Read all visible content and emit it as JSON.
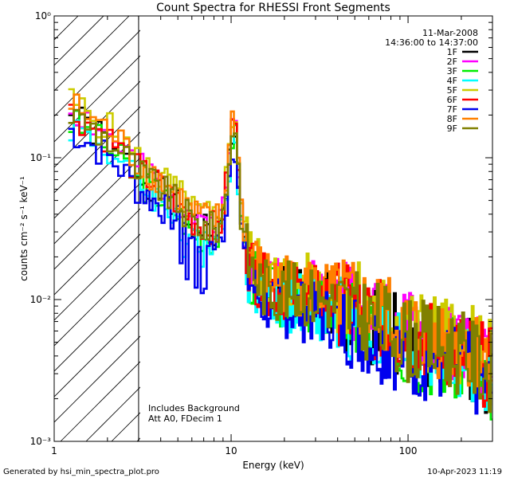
{
  "chart_data": {
    "type": "line",
    "title": "Count Spectra for RHESSI Front Segments",
    "xlabel": "Energy (keV)",
    "ylabel": "counts cm⁻² s⁻¹ keV⁻¹",
    "xscale": "log",
    "yscale": "log",
    "xlim": [
      1,
      300
    ],
    "ylim": [
      0.001,
      1
    ],
    "xticks": [
      {
        "value": 1,
        "label": "1"
      },
      {
        "value": 10,
        "label": "10"
      },
      {
        "value": 100,
        "label": "100"
      }
    ],
    "yticks": [
      {
        "value": 0.001,
        "label": "10⁻³"
      },
      {
        "value": 0.01,
        "label": "10⁻²"
      },
      {
        "value": 0.1,
        "label": "10⁻¹"
      },
      {
        "value": 1,
        "label": "10⁰"
      }
    ],
    "hatched_region": [
      1,
      3
    ],
    "legend_header": [
      "11-Mar-2008",
      "14:36:00 to 14:37:00"
    ],
    "annotations": [
      "Includes Background",
      "Att A0, FDecim 1"
    ],
    "series": [
      {
        "name": "1F",
        "color": "#000000",
        "seed": 1,
        "offset": 0.0
      },
      {
        "name": "2F",
        "color": "#ff00ff",
        "seed": 2,
        "offset": 0.05
      },
      {
        "name": "3F",
        "color": "#00ee00",
        "seed": 3,
        "offset": -0.04
      },
      {
        "name": "4F",
        "color": "#00ffff",
        "seed": 4,
        "offset": -0.06
      },
      {
        "name": "5F",
        "color": "#cccc00",
        "seed": 5,
        "offset": 0.1
      },
      {
        "name": "6F",
        "color": "#ff0000",
        "seed": 6,
        "offset": 0.03
      },
      {
        "name": "7F",
        "color": "#0000ee",
        "seed": 7,
        "offset": -0.1
      },
      {
        "name": "8F",
        "color": "#ff8000",
        "seed": 8,
        "offset": 0.08
      },
      {
        "name": "9F",
        "color": "#808000",
        "seed": 9,
        "offset": 0.02
      }
    ],
    "baseline": [
      [
        1.2,
        0.2
      ],
      [
        1.5,
        0.17
      ],
      [
        2,
        0.13
      ],
      [
        2.5,
        0.1
      ],
      [
        3,
        0.075
      ],
      [
        4,
        0.058
      ],
      [
        5,
        0.045
      ],
      [
        6,
        0.034
      ],
      [
        7,
        0.031
      ],
      [
        8,
        0.03
      ],
      [
        8.8,
        0.032
      ],
      [
        9.3,
        0.05
      ],
      [
        9.8,
        0.1
      ],
      [
        10.2,
        0.16
      ],
      [
        10.6,
        0.15
      ],
      [
        11,
        0.08
      ],
      [
        11.5,
        0.035
      ],
      [
        12.5,
        0.018
      ],
      [
        15,
        0.012
      ],
      [
        20,
        0.011
      ],
      [
        30,
        0.01
      ],
      [
        40,
        0.009
      ],
      [
        60,
        0.007
      ],
      [
        80,
        0.006
      ],
      [
        100,
        0.005
      ],
      [
        150,
        0.0045
      ],
      [
        200,
        0.004
      ],
      [
        250,
        0.0035
      ],
      [
        290,
        0.003
      ]
    ]
  },
  "footer": {
    "left": "Generated by hsi_min_spectra_plot.pro",
    "right": "10-Apr-2023 11:19"
  }
}
